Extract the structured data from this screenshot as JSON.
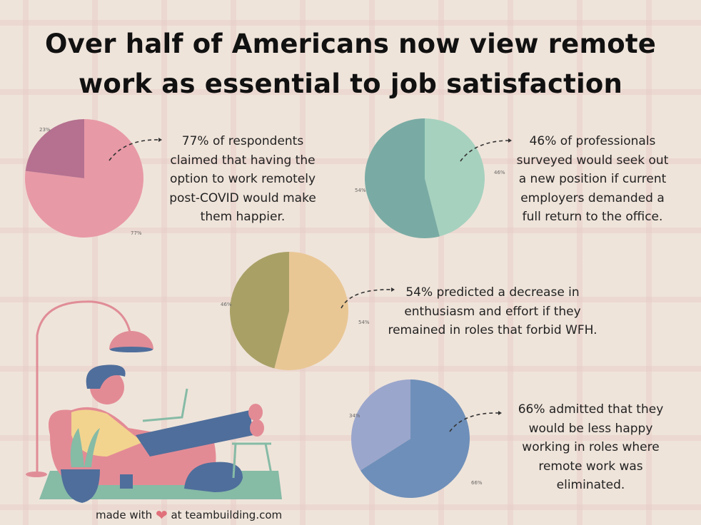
{
  "title": [
    "Over half of Americans now view remote",
    "work as essential to job satisfaction"
  ],
  "chart_data": [
    {
      "type": "pie",
      "slices": [
        {
          "label": "77%",
          "value": 77,
          "color": "#e899a6"
        },
        {
          "label": "23%",
          "value": 23,
          "color": "#b5718f"
        }
      ],
      "text": [
        "77% of respondents",
        "claimed that having the",
        "option to work remotely",
        "post-COVID would make",
        "them happier."
      ]
    },
    {
      "type": "pie",
      "slices": [
        {
          "label": "46%",
          "value": 46,
          "color": "#a6d1bf"
        },
        {
          "label": "54%",
          "value": 54,
          "color": "#79aba4"
        }
      ],
      "text": [
        "46% of professionals",
        "surveyed would seek out",
        "a new position if current",
        "employers demanded a",
        "full return to the office."
      ]
    },
    {
      "type": "pie",
      "slices": [
        {
          "label": "54%",
          "value": 54,
          "color": "#e9c795"
        },
        {
          "label": "46%",
          "value": 46,
          "color": "#a9a066"
        }
      ],
      "text": [
        "54% predicted a decrease in",
        "enthusiasm and effort if they",
        "remained in roles that forbid WFH."
      ]
    },
    {
      "type": "pie",
      "slices": [
        {
          "label": "66%",
          "value": 66,
          "color": "#6e8fb9"
        },
        {
          "label": "34%",
          "value": 34,
          "color": "#9ba6cc"
        }
      ],
      "text": [
        "66% admitted that they",
        "would be less happy",
        "working in roles where",
        "remote work was",
        "eliminated."
      ]
    }
  ],
  "footer": {
    "before": "made with",
    "heart_icon": "heart-icon",
    "after": "at teambuilding.com"
  }
}
